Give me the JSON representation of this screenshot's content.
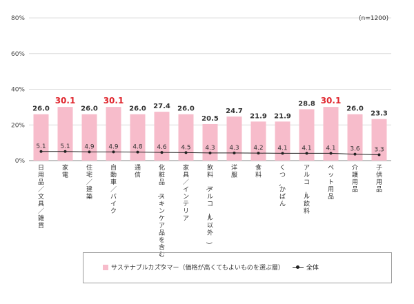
{
  "note": "(n=1200)",
  "legend": {
    "bar_label": "サステナブルカスタマー（価格が高くてもよいものを選ぶ層）",
    "line_label": "全体"
  },
  "chart_data": {
    "type": "bar",
    "categories": [
      "日用品／文具／雑貨",
      "家電",
      "住宅／建築",
      "自動車／バイク",
      "通信",
      "化粧品（スキンケア品を含む）",
      "家具／インテリア",
      "飲料（アルコール以外）",
      "洋服",
      "食料",
      "くつ、かばん",
      "アルコール飲料",
      "ペット用品",
      "介護用品",
      "子供用品"
    ],
    "series": [
      {
        "name": "サステナブルカスタマー（価格が高くてもよいものを選ぶ層）",
        "type": "bar",
        "values": [
          26.0,
          30.1,
          26.0,
          30.1,
          26.0,
          27.4,
          26.0,
          20.5,
          24.7,
          21.9,
          21.9,
          28.8,
          30.1,
          26.0,
          23.3
        ],
        "labels": [
          "26.0",
          "30.1",
          "26.0",
          "30.1",
          "26.0",
          "27.4",
          "26.0",
          "20.5",
          "24.7",
          "21.9",
          "21.9",
          "28.8",
          "30.1",
          "26.0",
          "23.3"
        ],
        "color": "#f7bccb"
      },
      {
        "name": "全体",
        "type": "line",
        "values": [
          5.1,
          5.1,
          4.9,
          4.9,
          4.8,
          4.6,
          4.5,
          4.3,
          4.3,
          4.2,
          4.1,
          4.1,
          4.1,
          3.6,
          3.3
        ],
        "labels": [
          "5.1",
          "5.1",
          "4.9",
          "4.9",
          "4.8",
          "4.6",
          "4.5",
          "4.3",
          "4.3",
          "4.2",
          "4.1",
          "4.1",
          "4.1",
          "3.6",
          "3.3"
        ],
        "color": "#222222"
      }
    ],
    "highlight_values": [
      "30.1"
    ],
    "highlight_color": "#e0262e",
    "yticks": [
      "0%",
      "20%",
      "40%",
      "60%",
      "80%"
    ],
    "ylim": [
      0,
      80
    ],
    "grid": true
  }
}
